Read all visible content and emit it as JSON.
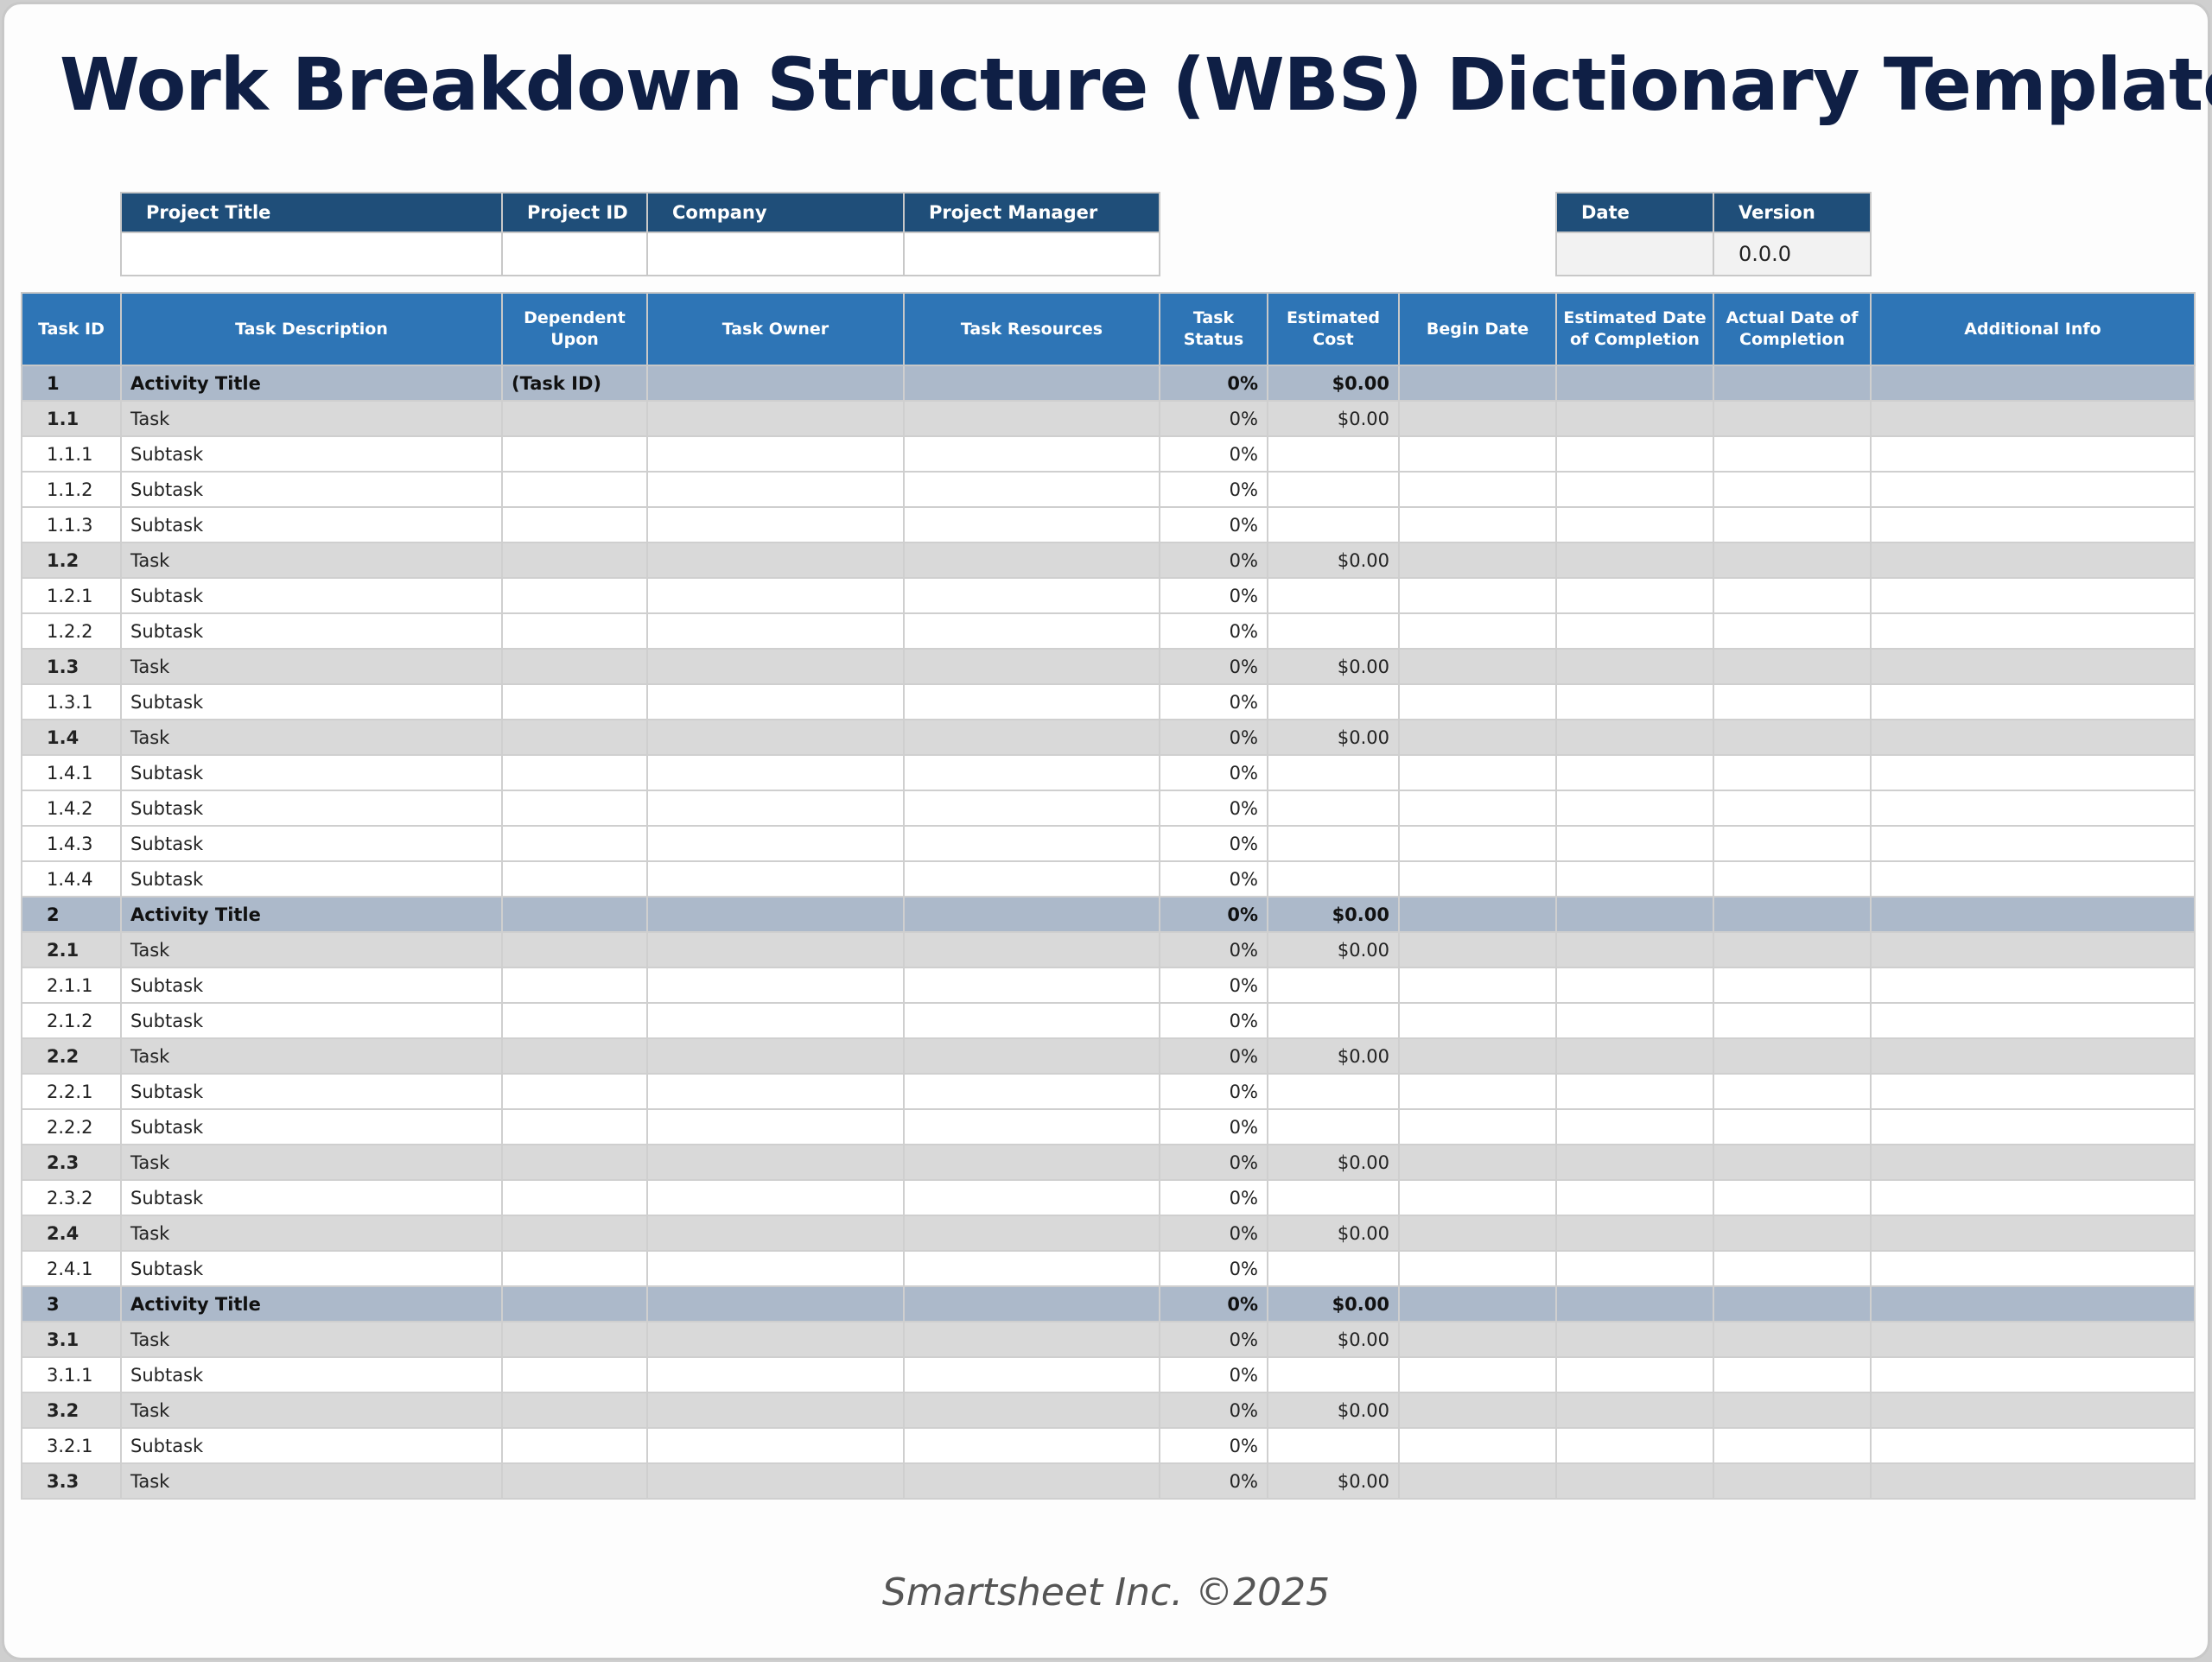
{
  "title": "Work Breakdown Structure (WBS) Dictionary Template",
  "info": {
    "headers": [
      "Project Title",
      "Project ID",
      "Company",
      "Project Manager"
    ],
    "values": [
      "",
      "",
      "",
      ""
    ]
  },
  "date_version": {
    "headers": [
      "Date",
      "Version"
    ],
    "values": [
      "",
      "0.0.0"
    ]
  },
  "columns": [
    "Task ID",
    "Task Description",
    "Dependent Upon",
    "Task Owner",
    "Task Resources",
    "Task Status",
    "Estimated Cost",
    "Begin Date",
    "Estimated Date of Completion",
    "Actual Date of Completion",
    "Additional Info"
  ],
  "rows": [
    {
      "level": "activity",
      "id": "1",
      "desc": "Activity Title",
      "dep": "(Task ID)",
      "status": "0%",
      "cost": "$0.00"
    },
    {
      "level": "task",
      "id": "1.1",
      "desc": "Task",
      "dep": "",
      "status": "0%",
      "cost": "$0.00"
    },
    {
      "level": "subtask",
      "id": "1.1.1",
      "desc": "Subtask",
      "dep": "",
      "status": "0%",
      "cost": ""
    },
    {
      "level": "subtask",
      "id": "1.1.2",
      "desc": "Subtask",
      "dep": "",
      "status": "0%",
      "cost": ""
    },
    {
      "level": "subtask",
      "id": "1.1.3",
      "desc": "Subtask",
      "dep": "",
      "status": "0%",
      "cost": ""
    },
    {
      "level": "task",
      "id": "1.2",
      "desc": "Task",
      "dep": "",
      "status": "0%",
      "cost": "$0.00"
    },
    {
      "level": "subtask",
      "id": "1.2.1",
      "desc": "Subtask",
      "dep": "",
      "status": "0%",
      "cost": ""
    },
    {
      "level": "subtask",
      "id": "1.2.2",
      "desc": "Subtask",
      "dep": "",
      "status": "0%",
      "cost": ""
    },
    {
      "level": "task",
      "id": "1.3",
      "desc": "Task",
      "dep": "",
      "status": "0%",
      "cost": "$0.00"
    },
    {
      "level": "subtask",
      "id": "1.3.1",
      "desc": "Subtask",
      "dep": "",
      "status": "0%",
      "cost": ""
    },
    {
      "level": "task",
      "id": "1.4",
      "desc": "Task",
      "dep": "",
      "status": "0%",
      "cost": "$0.00"
    },
    {
      "level": "subtask",
      "id": "1.4.1",
      "desc": "Subtask",
      "dep": "",
      "status": "0%",
      "cost": ""
    },
    {
      "level": "subtask",
      "id": "1.4.2",
      "desc": "Subtask",
      "dep": "",
      "status": "0%",
      "cost": ""
    },
    {
      "level": "subtask",
      "id": "1.4.3",
      "desc": "Subtask",
      "dep": "",
      "status": "0%",
      "cost": ""
    },
    {
      "level": "subtask",
      "id": "1.4.4",
      "desc": "Subtask",
      "dep": "",
      "status": "0%",
      "cost": ""
    },
    {
      "level": "activity",
      "id": "2",
      "desc": "Activity Title",
      "dep": "",
      "status": "0%",
      "cost": "$0.00"
    },
    {
      "level": "task",
      "id": "2.1",
      "desc": "Task",
      "dep": "",
      "status": "0%",
      "cost": "$0.00"
    },
    {
      "level": "subtask",
      "id": "2.1.1",
      "desc": "Subtask",
      "dep": "",
      "status": "0%",
      "cost": ""
    },
    {
      "level": "subtask",
      "id": "2.1.2",
      "desc": "Subtask",
      "dep": "",
      "status": "0%",
      "cost": ""
    },
    {
      "level": "task",
      "id": "2.2",
      "desc": "Task",
      "dep": "",
      "status": "0%",
      "cost": "$0.00"
    },
    {
      "level": "subtask",
      "id": "2.2.1",
      "desc": "Subtask",
      "dep": "",
      "status": "0%",
      "cost": ""
    },
    {
      "level": "subtask",
      "id": "2.2.2",
      "desc": "Subtask",
      "dep": "",
      "status": "0%",
      "cost": ""
    },
    {
      "level": "task",
      "id": "2.3",
      "desc": "Task",
      "dep": "",
      "status": "0%",
      "cost": "$0.00"
    },
    {
      "level": "subtask",
      "id": "2.3.2",
      "desc": "Subtask",
      "dep": "",
      "status": "0%",
      "cost": ""
    },
    {
      "level": "task",
      "id": "2.4",
      "desc": "Task",
      "dep": "",
      "status": "0%",
      "cost": "$0.00"
    },
    {
      "level": "subtask",
      "id": "2.4.1",
      "desc": "Subtask",
      "dep": "",
      "status": "0%",
      "cost": ""
    },
    {
      "level": "activity",
      "id": "3",
      "desc": "Activity Title",
      "dep": "",
      "status": "0%",
      "cost": "$0.00"
    },
    {
      "level": "task",
      "id": "3.1",
      "desc": "Task",
      "dep": "",
      "status": "0%",
      "cost": "$0.00"
    },
    {
      "level": "subtask",
      "id": "3.1.1",
      "desc": "Subtask",
      "dep": "",
      "status": "0%",
      "cost": ""
    },
    {
      "level": "task",
      "id": "3.2",
      "desc": "Task",
      "dep": "",
      "status": "0%",
      "cost": "$0.00"
    },
    {
      "level": "subtask",
      "id": "3.2.1",
      "desc": "Subtask",
      "dep": "",
      "status": "0%",
      "cost": ""
    },
    {
      "level": "task",
      "id": "3.3",
      "desc": "Task",
      "dep": "",
      "status": "0%",
      "cost": "$0.00"
    }
  ],
  "footer": "Smartsheet Inc. ©2025"
}
